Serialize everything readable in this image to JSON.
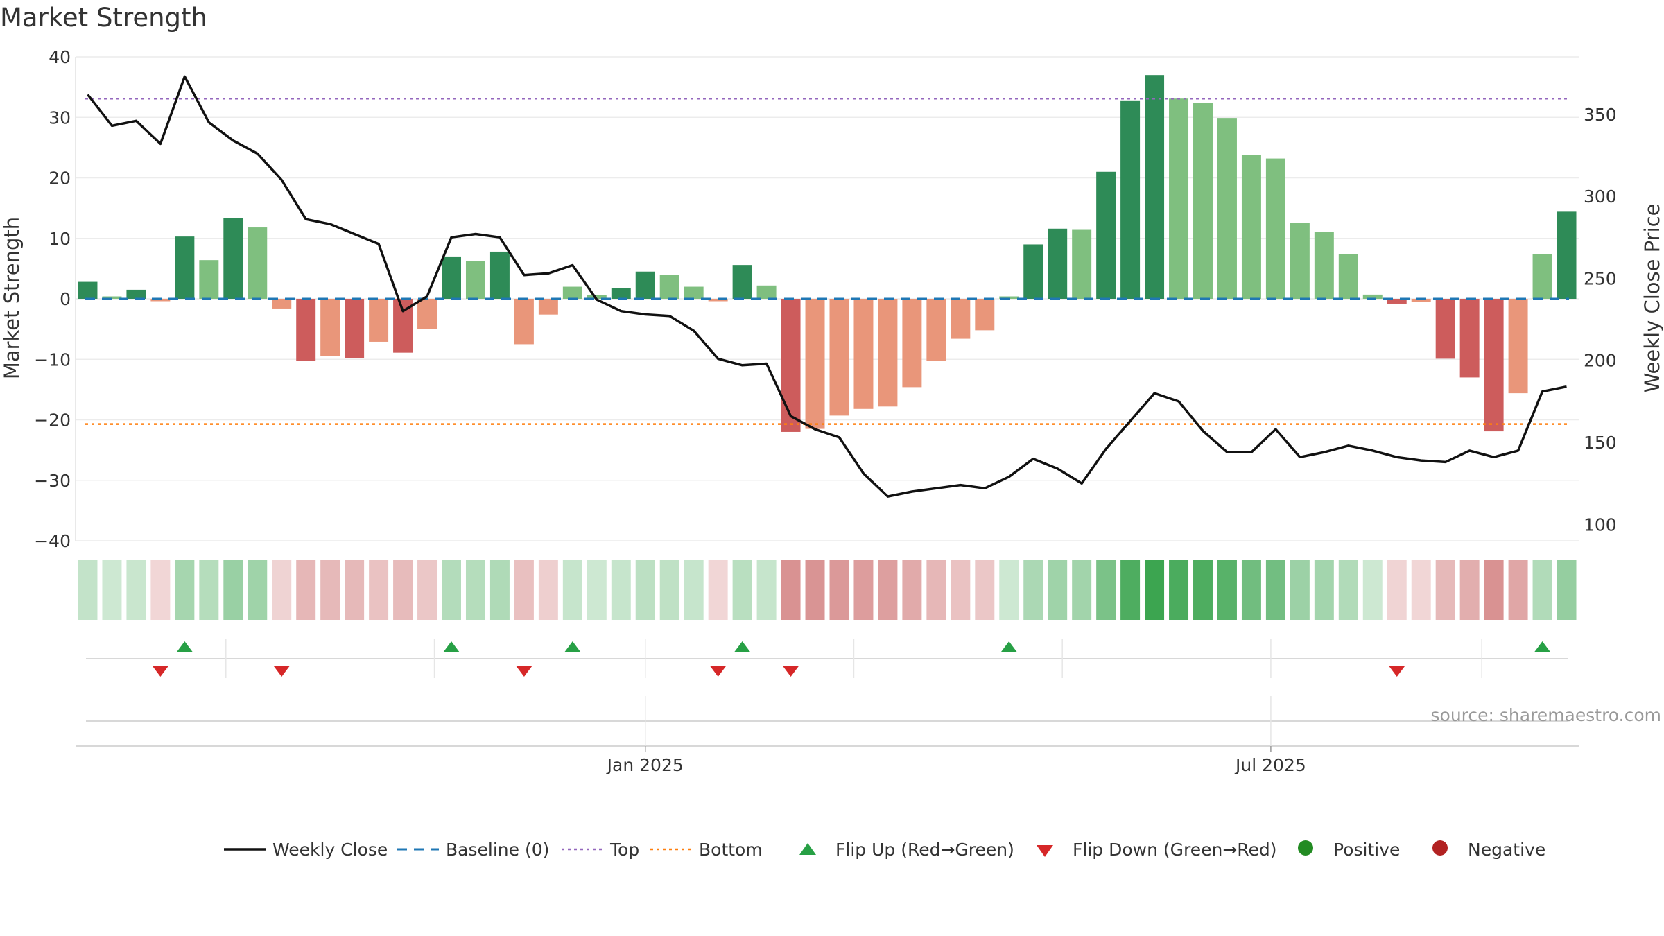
{
  "chart_data": {
    "type": "bar+line",
    "title": "Market Strength",
    "ylabel_left": "Market Strength",
    "ylabel_right": "Weekly Close Price",
    "ylim_left": [
      -40,
      40
    ],
    "ylim_right": [
      90,
      385
    ],
    "left_ticks": [
      "40",
      "30",
      "20",
      "10",
      "0",
      "−10",
      "−20",
      "−30",
      "−40"
    ],
    "left_tick_values": [
      40,
      30,
      20,
      10,
      0,
      -10,
      -20,
      -30,
      -40
    ],
    "right_ticks": [
      "350",
      "300",
      "250",
      "200",
      "150",
      "100"
    ],
    "right_tick_values": [
      350,
      300,
      250,
      200,
      150,
      100
    ],
    "x_labels": [
      {
        "label": "Jan 2025",
        "week_index": 23.5
      },
      {
        "label": "Jul 2025",
        "week_index": 49.3
      }
    ],
    "strength": [
      2.8,
      0.4,
      1.5,
      -0.4,
      10.3,
      6.4,
      13.3,
      11.8,
      -1.6,
      -10.2,
      -9.5,
      -9.8,
      -7.1,
      -8.9,
      -5.0,
      7.0,
      6.3,
      7.8,
      -7.5,
      -2.6,
      2.0,
      0.6,
      1.8,
      4.5,
      3.9,
      2.0,
      -0.4,
      5.6,
      2.2,
      -22.0,
      -21.5,
      -19.3,
      -18.2,
      -17.8,
      -14.6,
      -10.3,
      -6.6,
      -5.2,
      0.4,
      9.0,
      11.6,
      11.4,
      21.0,
      32.8,
      37.0,
      33.1,
      32.4,
      29.9,
      23.8,
      23.2,
      12.6,
      11.1,
      7.4,
      0.7,
      -0.8,
      -0.5,
      -9.9,
      -13.0,
      -21.9,
      -15.6,
      7.4,
      14.4
    ],
    "weekly_close": [
      362,
      343,
      346,
      332,
      373,
      345,
      334,
      326,
      310,
      286,
      283,
      277,
      271,
      230,
      239,
      275,
      277,
      275,
      252,
      253,
      258,
      237,
      230,
      228,
      227,
      218,
      201,
      197,
      198,
      166,
      158,
      153,
      131,
      117,
      120,
      122,
      124,
      122,
      129,
      140,
      134,
      125,
      146,
      163,
      180,
      175,
      157,
      144,
      144,
      158,
      141,
      144,
      148,
      145,
      141,
      139,
      138,
      145,
      141,
      145,
      181,
      184
    ],
    "flip_up_weeks": [
      4,
      15,
      20,
      27,
      38,
      60
    ],
    "flip_down_weeks": [
      3,
      8,
      18,
      26,
      29,
      54
    ],
    "top_line": 33.1,
    "bottom_line": -20.7,
    "baseline": 0
  },
  "legend": [
    {
      "label": "Weekly Close",
      "kind": "line"
    },
    {
      "label": "Baseline (0)",
      "kind": "dash"
    },
    {
      "label": "Top",
      "kind": "dot-purple"
    },
    {
      "label": "Bottom",
      "kind": "dot-orange"
    },
    {
      "label": "Flip Up (Red→Green)",
      "kind": "tri-up"
    },
    {
      "label": "Flip Down (Green→Red)",
      "kind": "tri-down"
    },
    {
      "label": "Positive",
      "kind": "dot-green"
    },
    {
      "label": "Negative",
      "kind": "dot-red"
    }
  ],
  "source": "source: sharemaestro.com",
  "colors": {
    "pos_strong": "#2e8b57",
    "pos_weak": "#7fbf7f",
    "neg_strong": "#cd5c5c",
    "neg_weak": "#e9967a",
    "close_line": "#111111",
    "baseline": "#1f77b4",
    "top": "#9467bd",
    "bottom": "#ff7f0e",
    "flip_up": "#27a045",
    "flip_down": "#d62728",
    "legend_pos": "#228b22",
    "legend_neg": "#b22222"
  }
}
